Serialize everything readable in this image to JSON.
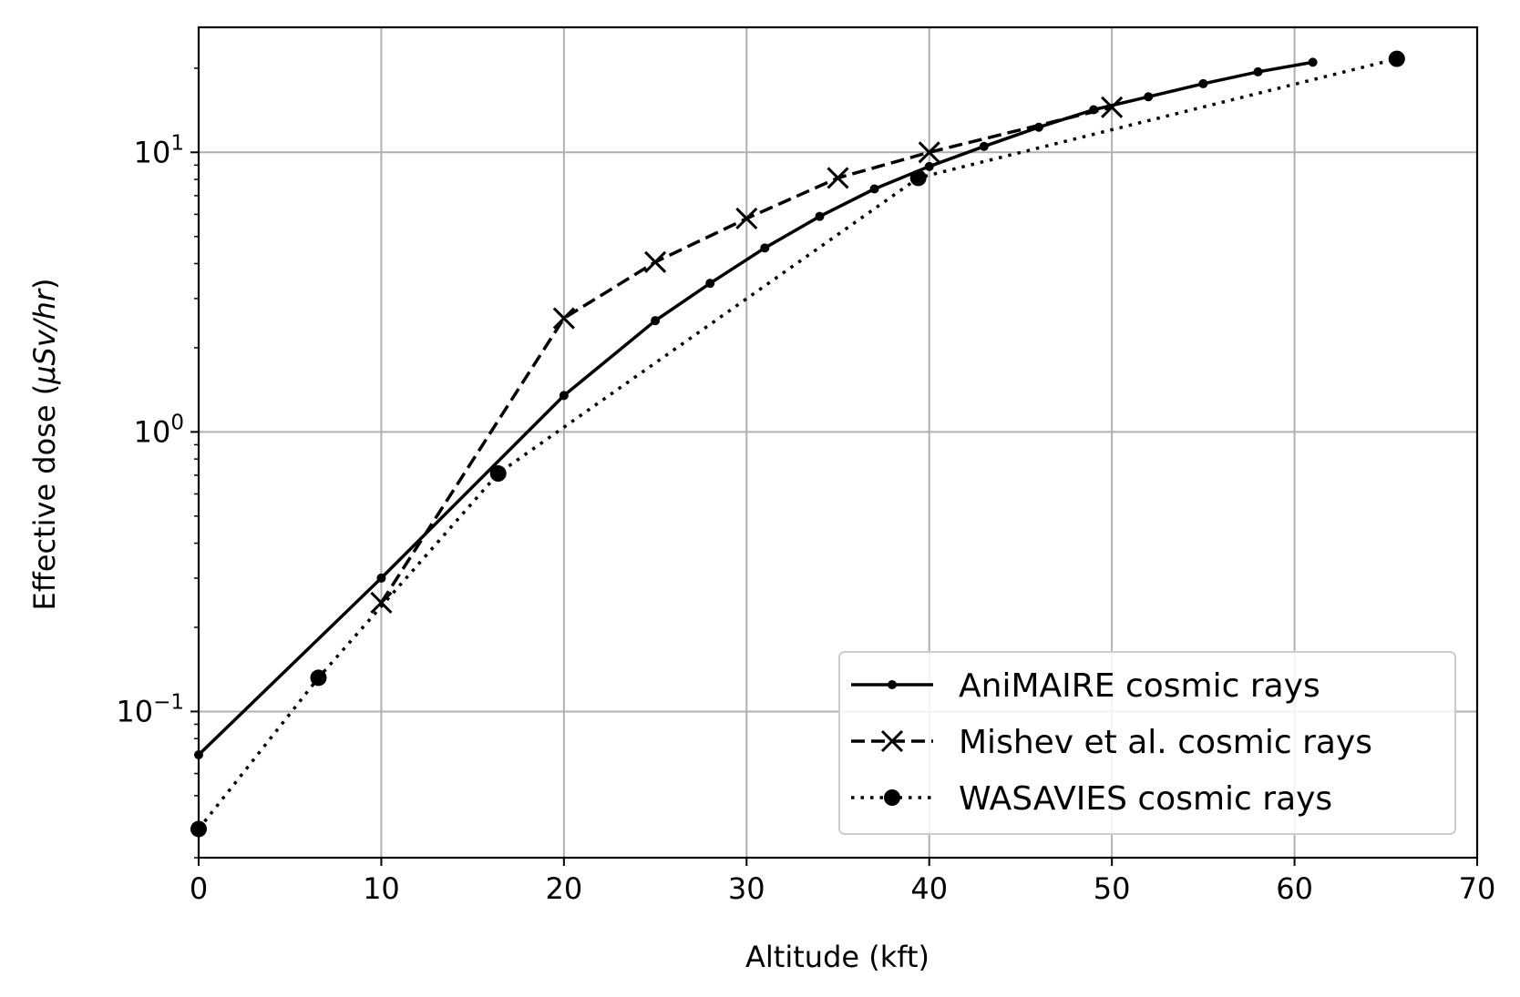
{
  "chart_data": {
    "type": "line",
    "title": "",
    "xlabel": "Altitude (kft)",
    "ylabel_main": "Effective dose (",
    "ylabel_italic": "µSv/hr",
    "ylabel_end": ")",
    "xlim": [
      0,
      70
    ],
    "ylim": [
      0.03,
      28
    ],
    "yscale": "log",
    "grid": true,
    "legend_position": "lower-right",
    "x_ticks": [
      0,
      10,
      20,
      30,
      40,
      50,
      60,
      70
    ],
    "x_tick_labels": [
      "0",
      "10",
      "20",
      "30",
      "40",
      "50",
      "60",
      "70"
    ],
    "y_ticks": [
      {
        "value": 10,
        "base": "10",
        "exp": "1"
      },
      {
        "value": 1,
        "base": "10",
        "exp": "0"
      },
      {
        "value": 0.1,
        "base": "10",
        "exp": "−1"
      }
    ],
    "series": [
      {
        "name": "AniMAIRE cosmic rays",
        "style": "solid",
        "marker": "dot",
        "color": "#000000",
        "x": [
          0,
          10,
          20,
          25,
          28,
          31,
          34,
          37,
          40,
          43,
          46,
          49,
          52,
          55,
          58,
          61
        ],
        "y": [
          0.07,
          0.3,
          1.35,
          2.5,
          3.4,
          4.55,
          5.9,
          7.4,
          8.9,
          10.5,
          12.3,
          14.2,
          15.8,
          17.6,
          19.4,
          21.0
        ]
      },
      {
        "name": "Mishev et al. cosmic rays",
        "style": "dashed",
        "marker": "x",
        "color": "#000000",
        "x": [
          10,
          20,
          25,
          30,
          35,
          40,
          50
        ],
        "y": [
          0.245,
          2.55,
          4.05,
          5.8,
          8.1,
          10.0,
          14.5
        ]
      },
      {
        "name": "WASAVIES cosmic rays",
        "style": "dotted",
        "marker": "circle",
        "color": "#000000",
        "x": [
          0,
          6.56,
          16.4,
          39.4,
          65.6
        ],
        "y": [
          0.038,
          0.132,
          0.71,
          8.1,
          21.6
        ]
      }
    ]
  }
}
